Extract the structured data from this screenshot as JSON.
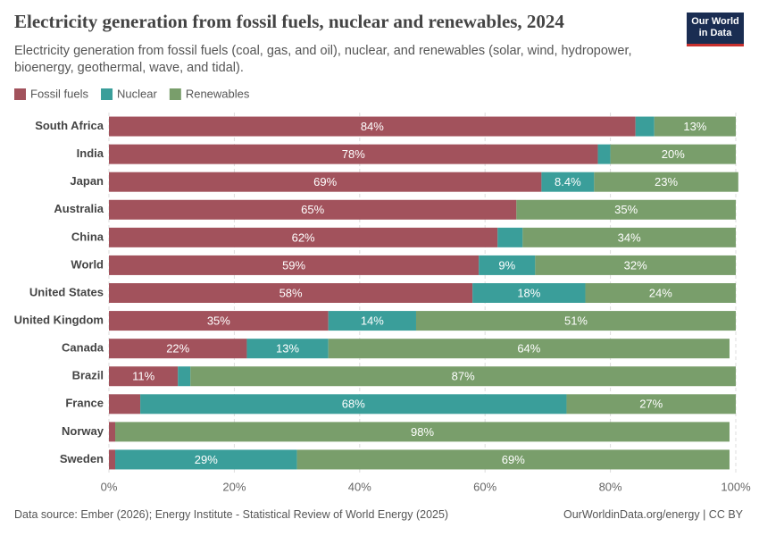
{
  "chart_data": {
    "type": "stacked-bar-horizontal",
    "title": "Electricity generation from fossil fuels, nuclear and renewables, 2024",
    "subtitle": "Electricity generation from fossil fuels (coal, gas, and oil), nuclear, and renewables (solar, wind, hydropower, bioenergy, geothermal, wave, and tidal).",
    "logo": "Our World in Data",
    "source": "Data source: Ember (2026); Energy Institute - Statistical Review of World Energy (2025)",
    "credit": "OurWorldinData.org/energy | CC BY",
    "categories": [
      "South Africa",
      "India",
      "Japan",
      "Australia",
      "China",
      "World",
      "United States",
      "United Kingdom",
      "Canada",
      "Brazil",
      "France",
      "Norway",
      "Sweden"
    ],
    "series": [
      {
        "name": "Fossil fuels",
        "color": "#a2525c",
        "values": [
          84,
          78,
          69,
          65,
          62,
          59,
          58,
          35,
          22,
          11,
          5,
          1,
          1
        ],
        "value_labels": [
          "84%",
          "78%",
          "69%",
          "65%",
          "62%",
          "59%",
          "58%",
          "35%",
          "22%",
          "11%",
          null,
          null,
          null
        ]
      },
      {
        "name": "Nuclear",
        "color": "#3a9e9a",
        "values": [
          3,
          2,
          8.4,
          0,
          4,
          9,
          18,
          14,
          13,
          2,
          68,
          0,
          29
        ],
        "value_labels": [
          null,
          null,
          "8.4%",
          null,
          null,
          "9%",
          "18%",
          "14%",
          "13%",
          null,
          "68%",
          null,
          "29%"
        ]
      },
      {
        "name": "Renewables",
        "color": "#799e6b",
        "values": [
          13,
          20,
          23,
          35,
          34,
          32,
          24,
          51,
          64,
          87,
          27,
          98,
          69
        ],
        "value_labels": [
          "13%",
          "20%",
          "23%",
          "35%",
          "34%",
          "32%",
          "24%",
          "51%",
          "64%",
          "87%",
          "27%",
          "98%",
          "69%"
        ]
      }
    ],
    "xlim": [
      0,
      100
    ],
    "xticks": [
      {
        "value": 0,
        "label": "0%"
      },
      {
        "value": 20,
        "label": "20%"
      },
      {
        "value": 40,
        "label": "40%"
      },
      {
        "value": 60,
        "label": "60%"
      },
      {
        "value": 80,
        "label": "80%"
      },
      {
        "value": 100,
        "label": "100%"
      }
    ],
    "grid": true,
    "legend": "top"
  }
}
